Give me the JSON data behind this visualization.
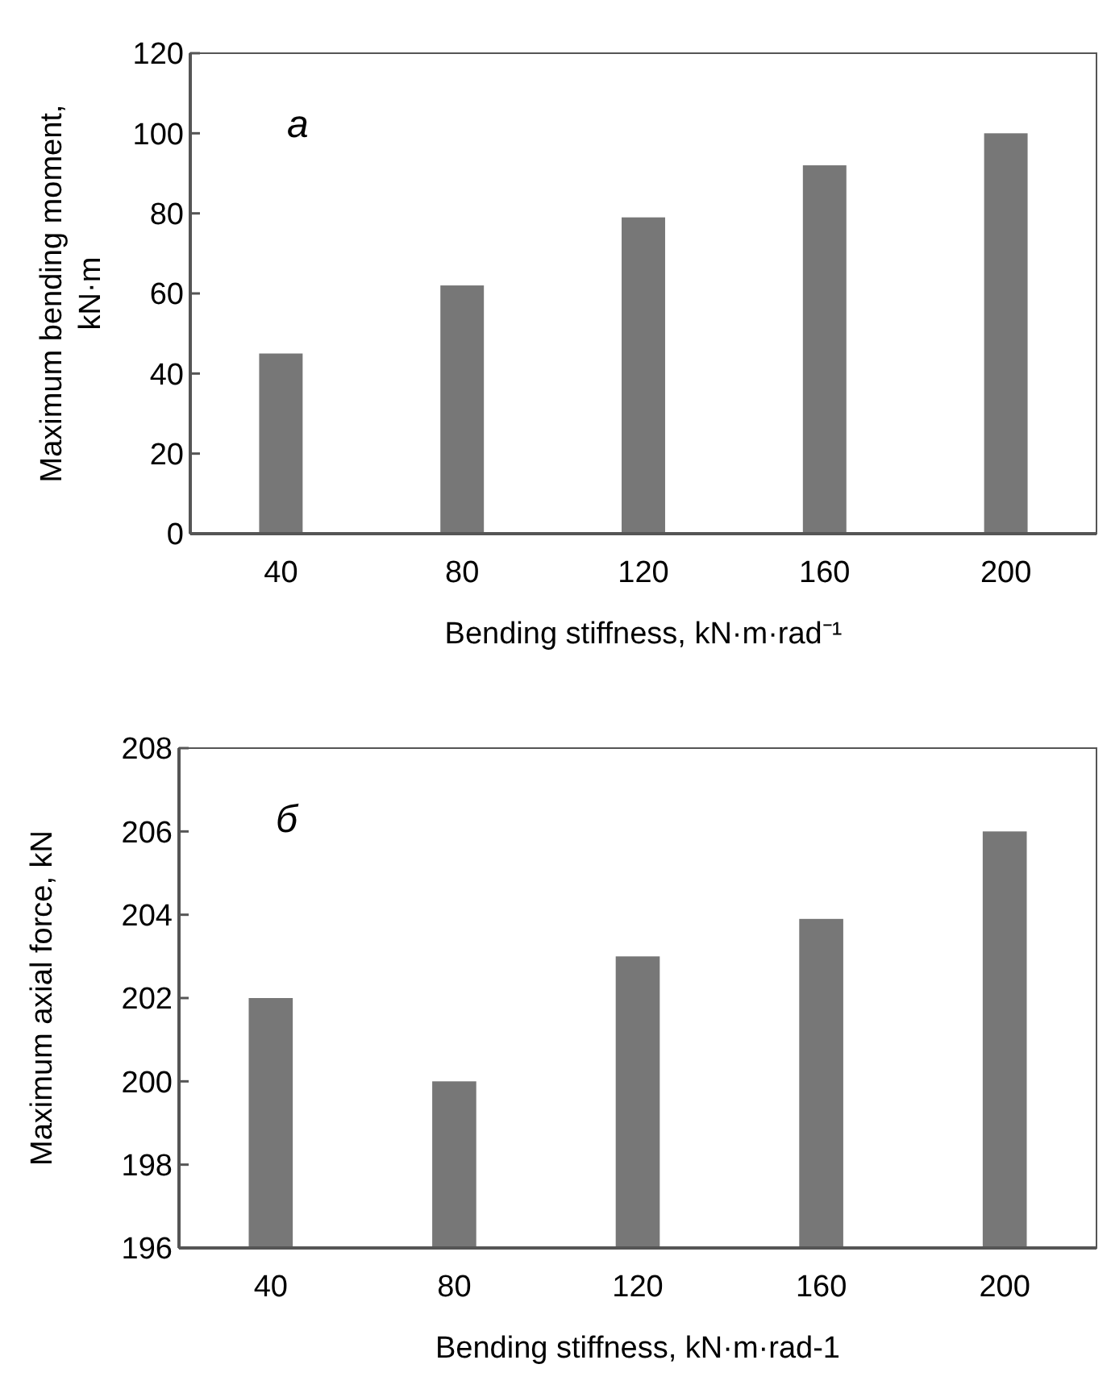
{
  "chart_data": [
    {
      "type": "bar",
      "categories": [
        "40",
        "80",
        "120",
        "160",
        "200"
      ],
      "values": [
        45,
        62,
        79,
        92,
        100
      ],
      "color": "#777777",
      "ylim": [
        0,
        120
      ],
      "yticks": [
        0,
        20,
        40,
        60,
        80,
        100,
        120
      ],
      "xlabel": "Bending stiffness, kN·m·rad⁻¹",
      "ylabel": "Maximum bending moment, kN·m",
      "annotations": [
        "a"
      ]
    },
    {
      "type": "bar",
      "categories": [
        "40",
        "80",
        "120",
        "160",
        "200"
      ],
      "values": [
        202,
        200,
        203,
        203.9,
        206
      ],
      "color": "#777777",
      "ylim": [
        196,
        208
      ],
      "yticks": [
        196,
        198,
        200,
        202,
        204,
        206,
        208
      ],
      "xlabel": "Bending stiffness, kN·m·rad-1",
      "ylabel": "Maximum axial force, kN",
      "annotations": [
        "б"
      ]
    }
  ]
}
